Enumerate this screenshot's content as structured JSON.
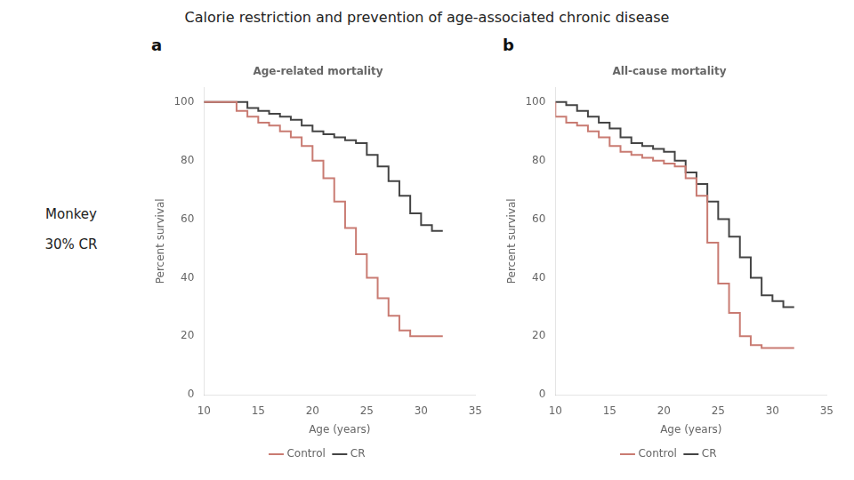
{
  "title": "Calorie restriction and prevention of age-associated chronic disease",
  "annotations": [
    "Monkey",
    "30% CR"
  ],
  "chart_data": [
    {
      "type": "line",
      "panel_label": "a",
      "title": "Age-related mortality",
      "xlabel": "Age (years)",
      "ylabel": "Percent survival",
      "xlim": [
        10,
        35
      ],
      "ylim": [
        0,
        105
      ],
      "xticks": [
        10,
        15,
        20,
        25,
        30,
        35
      ],
      "yticks": [
        0,
        20,
        40,
        60,
        80,
        100
      ],
      "grid": false,
      "legend": "bottom",
      "series": [
        {
          "name": "Control",
          "color": "#c97b72",
          "line_style": "step",
          "x": [
            10,
            13,
            14,
            15,
            16,
            17,
            18,
            19,
            20,
            21,
            22,
            23,
            24,
            25,
            26,
            27,
            28,
            29,
            30,
            31,
            32
          ],
          "values": [
            100,
            100,
            97,
            95,
            93,
            92,
            90,
            88,
            85,
            80,
            74,
            66,
            57,
            48,
            40,
            33,
            27,
            22,
            20,
            20,
            20
          ]
        },
        {
          "name": "CR",
          "color": "#444444",
          "line_style": "step",
          "x": [
            10,
            14,
            15,
            16,
            17,
            18,
            19,
            20,
            21,
            22,
            23,
            24,
            25,
            26,
            27,
            28,
            29,
            30,
            31,
            32
          ],
          "values": [
            100,
            100,
            98,
            97,
            96,
            95,
            94,
            92,
            90,
            89,
            88,
            87,
            86,
            82,
            78,
            73,
            68,
            62,
            58,
            56
          ]
        }
      ]
    },
    {
      "type": "line",
      "panel_label": "b",
      "title": "All-cause mortality",
      "xlabel": "Age (years)",
      "ylabel": "Percent survival",
      "xlim": [
        10,
        35
      ],
      "ylim": [
        0,
        105
      ],
      "xticks": [
        10,
        15,
        20,
        25,
        30,
        35
      ],
      "yticks": [
        0,
        20,
        40,
        60,
        80,
        100
      ],
      "grid": false,
      "legend": "bottom",
      "series": [
        {
          "name": "Control",
          "color": "#c97b72",
          "line_style": "step",
          "x": [
            10,
            11,
            12,
            13,
            14,
            15,
            16,
            17,
            18,
            19,
            20,
            21,
            22,
            23,
            24,
            25,
            26,
            27,
            28,
            29,
            30,
            31,
            32
          ],
          "values": [
            100,
            95,
            93,
            92,
            90,
            88,
            85,
            83,
            82,
            81,
            80,
            79,
            78,
            74,
            68,
            52,
            38,
            28,
            20,
            17,
            16,
            16,
            16
          ]
        },
        {
          "name": "CR",
          "color": "#444444",
          "line_style": "step",
          "x": [
            10,
            11,
            12,
            13,
            14,
            15,
            16,
            17,
            18,
            19,
            20,
            21,
            22,
            23,
            24,
            25,
            26,
            27,
            28,
            29,
            30,
            31,
            32
          ],
          "values": [
            100,
            100,
            99,
            97,
            95,
            93,
            91,
            88,
            86,
            85,
            84,
            83,
            80,
            76,
            72,
            66,
            60,
            54,
            47,
            40,
            34,
            32,
            30
          ]
        }
      ]
    }
  ]
}
